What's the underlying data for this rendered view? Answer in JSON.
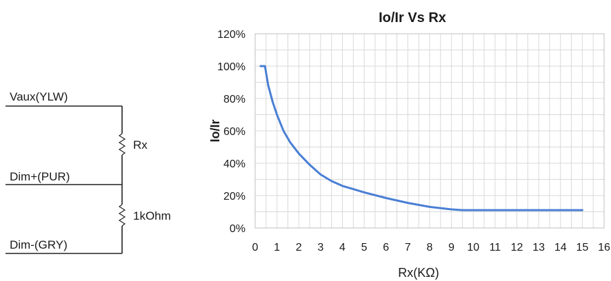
{
  "circuit": {
    "labels": {
      "vaux": "Vaux(YLW)",
      "dim_plus": "Dim+(PUR)",
      "dim_minus": "Dim-(GRY)",
      "rx": "Rx",
      "r_fixed": "1kOhm"
    }
  },
  "chart_data": {
    "type": "line",
    "title": "Io/Ir Vs Rx",
    "xlabel": "Rx(KΩ)",
    "ylabel": "Io/Ir",
    "xlim": [
      0,
      16
    ],
    "ylim": [
      0,
      120
    ],
    "x_ticks": [
      "0",
      "1",
      "2",
      "3",
      "4",
      "5",
      "6",
      "7",
      "8",
      "9",
      "10",
      "11",
      "12",
      "13",
      "14",
      "15",
      "16"
    ],
    "y_ticks": [
      "0%",
      "20%",
      "40%",
      "60%",
      "80%",
      "100%",
      "120%"
    ],
    "x_minor_step": 0.5,
    "y_minor_step": 10,
    "grid": true,
    "legend": "none",
    "series": [
      {
        "color": "#4a7fd4",
        "x": [
          0.25,
          0.45,
          0.6,
          0.8,
          1.0,
          1.3,
          1.6,
          2.0,
          2.5,
          3.0,
          3.5,
          4.0,
          4.5,
          5.0,
          6.0,
          7.0,
          8.0,
          9.0,
          9.5,
          10,
          11,
          12,
          13,
          14,
          15
        ],
        "y": [
          100,
          100,
          88,
          78,
          70,
          60,
          53,
          46,
          39,
          33,
          29,
          26,
          24,
          22,
          18.5,
          15.5,
          13,
          11.5,
          11,
          11,
          11,
          11,
          11,
          11,
          11
        ]
      }
    ]
  }
}
